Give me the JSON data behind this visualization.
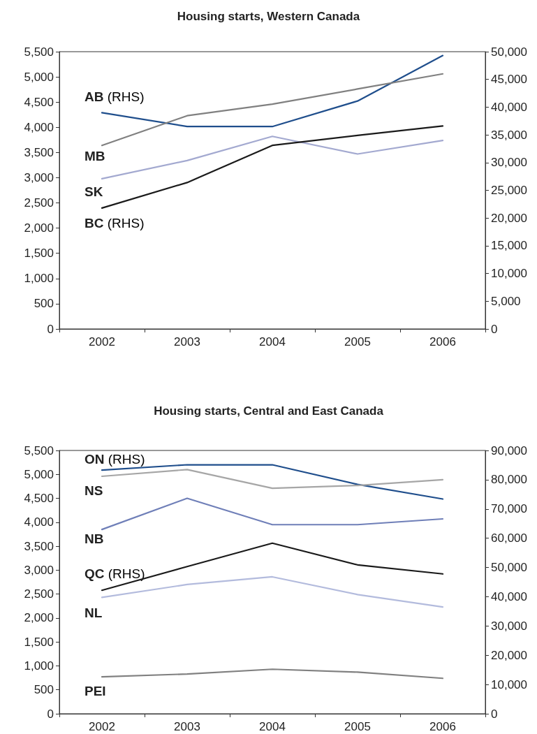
{
  "chart_data": [
    {
      "type": "line",
      "title": "Housing starts, Western Canada",
      "categories": [
        "2002",
        "2003",
        "2004",
        "2005",
        "2006"
      ],
      "ylim": [
        0,
        5500
      ],
      "yticks": [
        {
          "value": 0,
          "label": "0"
        },
        500,
        {
          "value": 1000,
          "label": "1,000"
        },
        {
          "value": 1500,
          "label": "1,500"
        },
        {
          "value": 2000,
          "label": "2,000"
        },
        {
          "value": 2500,
          "label": "2,500"
        },
        {
          "value": 3000,
          "label": "3,000"
        },
        {
          "value": 3500,
          "label": "3,500"
        },
        {
          "value": 4000,
          "label": "4,000"
        },
        {
          "value": 4500,
          "label": "4,500"
        },
        {
          "value": 5000,
          "label": "5,000"
        },
        {
          "value": 5500,
          "label": "5,500"
        }
      ],
      "y2lim": [
        0,
        50000
      ],
      "y2ticks": [
        {
          "value": 0,
          "label": "0"
        },
        {
          "value": 5000,
          "label": "5,000"
        },
        {
          "value": 10000,
          "label": "10,000"
        },
        {
          "value": 15000,
          "label": "15,000"
        },
        {
          "value": 20000,
          "label": "20,000"
        },
        {
          "value": 25000,
          "label": "25,000"
        },
        {
          "value": 30000,
          "label": "30,000"
        },
        {
          "value": 35000,
          "label": "35,000"
        },
        {
          "value": 40000,
          "label": "40,000"
        },
        {
          "value": 45000,
          "label": "45,000"
        },
        {
          "value": 50000,
          "label": "50,000"
        }
      ],
      "marker": "none",
      "grid": false,
      "series": [
        {
          "name": "AB (RHS)",
          "color": "#1f4e8c",
          "axis": "y2",
          "values": [
            39000,
            36500,
            36500,
            41100,
            49300
          ]
        },
        {
          "name": "MB",
          "color": "#808080",
          "values": [
            3640,
            4230,
            4460,
            4760,
            5060
          ]
        },
        {
          "name": "SK",
          "color": "#a3a9d0",
          "values": [
            2980,
            3340,
            3820,
            3470,
            3740
          ]
        },
        {
          "name": "BC (RHS)",
          "color": "#1a1a1a",
          "axis": "y2",
          "values": [
            21800,
            26400,
            33100,
            34900,
            36600
          ]
        }
      ]
    },
    {
      "type": "line",
      "title": "Housing starts, Central and East Canada",
      "categories": [
        "2002",
        "2003",
        "2004",
        "2005",
        "2006"
      ],
      "ylim": [
        0,
        5500
      ],
      "yticks": [
        {
          "value": 0,
          "label": "0"
        },
        500,
        {
          "value": 1000,
          "label": "1,000"
        },
        {
          "value": 1500,
          "label": "1,500"
        },
        {
          "value": 2000,
          "label": "2,000"
        },
        {
          "value": 2500,
          "label": "2,500"
        },
        {
          "value": 3000,
          "label": "3,000"
        },
        {
          "value": 3500,
          "label": "3,500"
        },
        {
          "value": 4000,
          "label": "4,000"
        },
        {
          "value": 4500,
          "label": "4,500"
        },
        {
          "value": 5000,
          "label": "5,000"
        },
        {
          "value": 5500,
          "label": "5,500"
        }
      ],
      "y2lim": [
        0,
        90000
      ],
      "y2ticks": [
        {
          "value": 0,
          "label": "0"
        },
        {
          "value": 10000,
          "label": "10,000"
        },
        {
          "value": 20000,
          "label": "20,000"
        },
        {
          "value": 30000,
          "label": "30,000"
        },
        {
          "value": 40000,
          "label": "40,000"
        },
        {
          "value": 50000,
          "label": "50,000"
        },
        {
          "value": 60000,
          "label": "60,000"
        },
        {
          "value": 70000,
          "label": "70,000"
        },
        {
          "value": 80000,
          "label": "80,000"
        },
        {
          "value": 90000,
          "label": "90,000"
        }
      ],
      "marker": "none",
      "grid": false,
      "series": [
        {
          "name": "ON (RHS)",
          "color": "#1f4e8c",
          "axis": "y2",
          "values": [
            83300,
            85100,
            85100,
            78400,
            73400
          ]
        },
        {
          "name": "NS",
          "color": "#a6a6a6",
          "values": [
            4960,
            5100,
            4710,
            4770,
            4890
          ]
        },
        {
          "name": "NB",
          "color": "#6f7fb8",
          "values": [
            3850,
            4500,
            3950,
            3950,
            4070
          ]
        },
        {
          "name": "QC (RHS)",
          "color": "#1a1a1a",
          "axis": "y2",
          "values": [
            42200,
            50300,
            58300,
            50900,
            47800
          ]
        },
        {
          "name": "NL",
          "color": "#b3bbdd",
          "values": [
            2430,
            2700,
            2860,
            2490,
            2230
          ]
        },
        {
          "name": "PEI",
          "color": "#808080",
          "values": [
            770,
            830,
            930,
            870,
            740
          ]
        }
      ]
    }
  ]
}
